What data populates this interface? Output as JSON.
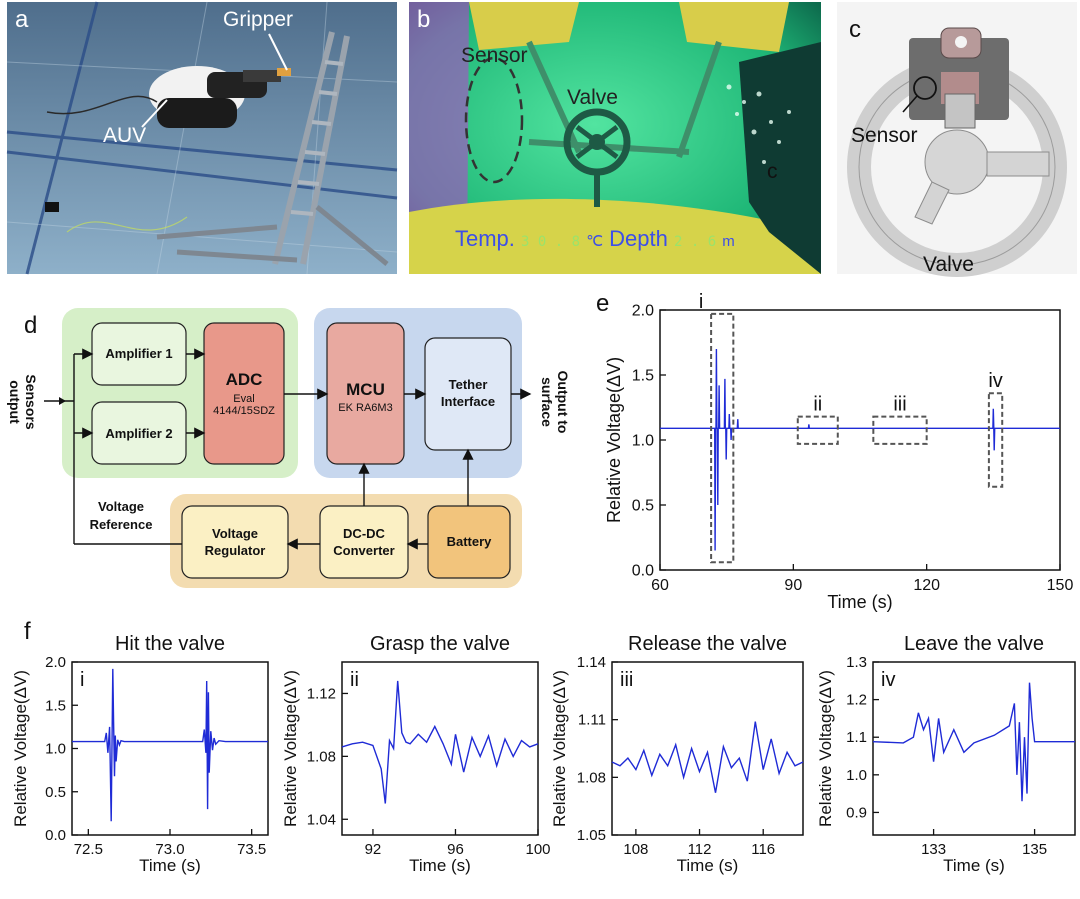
{
  "panels": {
    "a": {
      "letter": "a",
      "gripper_label": "Gripper",
      "auv_label": "AUV"
    },
    "b": {
      "letter": "b",
      "sensor_label": "Sensor",
      "valve_label": "Valve",
      "corner_label": "c",
      "temp_label": "Temp.",
      "temp_value": "3 0 . 8",
      "temp_unit": "℃",
      "depth_label": "Depth",
      "depth_value": "2 . 6",
      "depth_unit": "m"
    },
    "c": {
      "letter": "c",
      "sensor_label": "Sensor",
      "valve_label": "Valve"
    },
    "d": {
      "letter": "d",
      "sensors_output": [
        "Sensors",
        "output"
      ],
      "output_surface": [
        "Output to",
        "surface"
      ],
      "amp1": "Amplifier 1",
      "amp2": "Amplifier 2",
      "adc_title": "ADC",
      "adc_sub1": "Eval",
      "adc_sub2": "4144/15SDZ",
      "mcu_title": "MCU",
      "mcu_sub": "EK RA6M3",
      "tether": [
        "Tether",
        "Interface"
      ],
      "vref": [
        "Voltage",
        "Reference"
      ],
      "regulator": [
        "Voltage",
        "Regulator"
      ],
      "dcdc": [
        "DC-DC",
        "Converter"
      ],
      "battery": "Battery",
      "colors": {
        "green_bg": "#d6efc8",
        "blue_bg": "#c7d7ee",
        "orange_bg": "#f3dcb0",
        "box_green": "#e9f6df",
        "adc": "#e8988a",
        "mcu": "#e8a9a0",
        "tether": "#dfe8f6",
        "regulator": "#fbf0c4",
        "dcdc": "#fbf0c4",
        "battery": "#f2c47c"
      }
    },
    "e": {
      "letter": "e",
      "box_labels": [
        "i",
        "ii",
        "iii",
        "iv"
      ]
    },
    "f": {
      "letter": "f"
    }
  },
  "chart_data": [
    {
      "id": "e",
      "type": "line",
      "title": "",
      "xlabel": "Time (s)",
      "ylabel": "Relative Voltage(ΔV)",
      "xlim": [
        60,
        150
      ],
      "ylim": [
        0.0,
        2.0
      ],
      "xticks": [
        60,
        90,
        120,
        150
      ],
      "yticks": [
        0.0,
        0.5,
        1.0,
        1.5,
        2.0
      ],
      "xtick_labels": [
        "60",
        "90",
        "120",
        "150"
      ],
      "ytick_labels": [
        "0.0",
        "0.5",
        "1.0",
        "1.5",
        "2.0"
      ],
      "baseline": 1.09,
      "spikes": [
        {
          "t": 72.4,
          "v": 0.15
        },
        {
          "t": 72.7,
          "v": 1.7
        },
        {
          "t": 73.0,
          "v": 0.5
        },
        {
          "t": 73.3,
          "v": 1.42
        },
        {
          "t": 74.6,
          "v": 1.47
        },
        {
          "t": 74.9,
          "v": 0.85
        },
        {
          "t": 75.6,
          "v": 1.2
        },
        {
          "t": 76.0,
          "v": 1.0
        },
        {
          "t": 77.5,
          "v": 1.16
        },
        {
          "t": 93.5,
          "v": 1.12
        },
        {
          "t": 135.0,
          "v": 1.24
        },
        {
          "t": 135.2,
          "v": 0.92
        }
      ],
      "highlight_boxes": [
        {
          "label": "i",
          "t0": 71.5,
          "t1": 76.5,
          "v0": 0.06,
          "v1": 1.97
        },
        {
          "label": "ii",
          "t0": 91,
          "t1": 100,
          "v0": 0.97,
          "v1": 1.18
        },
        {
          "label": "iii",
          "t0": 108,
          "t1": 120,
          "v0": 0.97,
          "v1": 1.18
        },
        {
          "label": "iv",
          "t0": 134,
          "t1": 137,
          "v0": 0.64,
          "v1": 1.36
        }
      ],
      "line_color": "#1f2bd6"
    },
    {
      "id": "f-i",
      "type": "line",
      "title": "Hit the valve",
      "xlabel": "Time (s)",
      "ylabel": "Relative Voltage(ΔV)",
      "corner_label": "i",
      "xlim": [
        72.4,
        73.6
      ],
      "ylim": [
        0.0,
        2.0
      ],
      "xticks": [
        72.5,
        73.0,
        73.5
      ],
      "yticks": [
        0.0,
        0.5,
        1.0,
        1.5,
        2.0
      ],
      "xtick_labels": [
        "72.5",
        "73.0",
        "73.5"
      ],
      "ytick_labels": [
        "0.0",
        "0.5",
        "1.0",
        "1.5",
        "2.0"
      ],
      "x": [
        72.4,
        72.6,
        72.61,
        72.62,
        72.63,
        72.64,
        72.65,
        72.655,
        72.66,
        72.665,
        72.67,
        72.68,
        72.69,
        72.7,
        72.72,
        72.76,
        73.2,
        73.21,
        73.22,
        73.225,
        73.23,
        73.235,
        73.24,
        73.25,
        73.26,
        73.27,
        73.28,
        73.3,
        73.34,
        73.6
      ],
      "y": [
        1.08,
        1.08,
        1.18,
        0.95,
        1.25,
        0.16,
        1.92,
        1.3,
        0.68,
        1.15,
        0.85,
        1.1,
        1.04,
        1.09,
        1.08,
        1.08,
        1.08,
        1.22,
        0.95,
        1.78,
        0.3,
        1.65,
        0.72,
        1.2,
        0.98,
        1.12,
        1.05,
        1.09,
        1.08,
        1.08
      ],
      "line_color": "#1f2bd6"
    },
    {
      "id": "f-ii",
      "type": "line",
      "title": "Grasp the valve",
      "xlabel": "Time (s)",
      "ylabel": "Relative Voltage(ΔV)",
      "corner_label": "ii",
      "xlim": [
        90.5,
        100
      ],
      "ylim": [
        1.03,
        1.14
      ],
      "xticks": [
        92,
        96,
        100
      ],
      "yticks": [
        1.04,
        1.08,
        1.12
      ],
      "xtick_labels": [
        "92",
        "96",
        "100"
      ],
      "ytick_labels": [
        "1.04",
        "1.08",
        "1.12"
      ],
      "x": [
        90.5,
        91.0,
        91.5,
        92.0,
        92.4,
        92.6,
        92.8,
        93.0,
        93.2,
        93.4,
        93.6,
        93.8,
        94.2,
        94.6,
        95.0,
        95.4,
        95.8,
        96.0,
        96.4,
        96.8,
        97.2,
        97.6,
        98.0,
        98.4,
        98.8,
        99.2,
        99.6,
        100.0
      ],
      "y": [
        1.086,
        1.088,
        1.089,
        1.087,
        1.072,
        1.05,
        1.09,
        1.085,
        1.128,
        1.095,
        1.089,
        1.088,
        1.094,
        1.089,
        1.099,
        1.088,
        1.075,
        1.094,
        1.07,
        1.092,
        1.08,
        1.093,
        1.074,
        1.091,
        1.08,
        1.09,
        1.086,
        1.088
      ],
      "line_color": "#1f2bd6"
    },
    {
      "id": "f-iii",
      "type": "line",
      "title": "Release the valve",
      "xlabel": "Time (s)",
      "ylabel": "Relative Voltage(ΔV)",
      "corner_label": "iii",
      "xlim": [
        106.5,
        118.5
      ],
      "ylim": [
        1.05,
        1.14
      ],
      "xticks": [
        108,
        112,
        116
      ],
      "yticks": [
        1.05,
        1.08,
        1.11,
        1.14
      ],
      "xtick_labels": [
        "108",
        "112",
        "116"
      ],
      "ytick_labels": [
        "1.05",
        "1.08",
        "1.11",
        "1.14"
      ],
      "x": [
        106.5,
        107.0,
        107.5,
        108.0,
        108.5,
        109.0,
        109.5,
        110.0,
        110.5,
        111.0,
        111.5,
        112.0,
        112.5,
        113.0,
        113.5,
        114.0,
        114.5,
        115.0,
        115.5,
        116.0,
        116.5,
        117.0,
        117.5,
        118.0,
        118.5
      ],
      "y": [
        1.088,
        1.086,
        1.09,
        1.084,
        1.094,
        1.081,
        1.092,
        1.086,
        1.097,
        1.08,
        1.095,
        1.083,
        1.093,
        1.072,
        1.096,
        1.085,
        1.09,
        1.078,
        1.109,
        1.084,
        1.1,
        1.082,
        1.093,
        1.086,
        1.088
      ],
      "line_color": "#1f2bd6"
    },
    {
      "id": "f-iv",
      "type": "line",
      "title": "Leave the valve",
      "xlabel": "Time (s)",
      "ylabel": "Relative Voltage(ΔV)",
      "corner_label": "iv",
      "xlim": [
        131.8,
        135.8
      ],
      "ylim": [
        0.84,
        1.3
      ],
      "xticks": [
        133,
        135
      ],
      "yticks": [
        0.9,
        1.0,
        1.1,
        1.2,
        1.3
      ],
      "xtick_labels": [
        "133",
        "135"
      ],
      "ytick_labels": [
        "0.9",
        "1.0",
        "1.1",
        "1.2",
        "1.3"
      ],
      "x": [
        131.8,
        132.4,
        132.6,
        132.7,
        132.8,
        132.9,
        133.0,
        133.1,
        133.2,
        133.4,
        133.6,
        133.8,
        134.2,
        134.5,
        134.6,
        134.65,
        134.7,
        134.75,
        134.8,
        134.85,
        134.9,
        134.95,
        135.0,
        135.2,
        135.8
      ],
      "y": [
        1.088,
        1.085,
        1.1,
        1.165,
        1.12,
        1.15,
        1.035,
        1.15,
        1.06,
        1.12,
        1.06,
        1.085,
        1.105,
        1.13,
        1.19,
        1.0,
        1.14,
        0.93,
        1.1,
        0.95,
        1.245,
        1.15,
        1.088,
        1.088,
        1.088
      ],
      "line_color": "#1f2bd6"
    }
  ]
}
